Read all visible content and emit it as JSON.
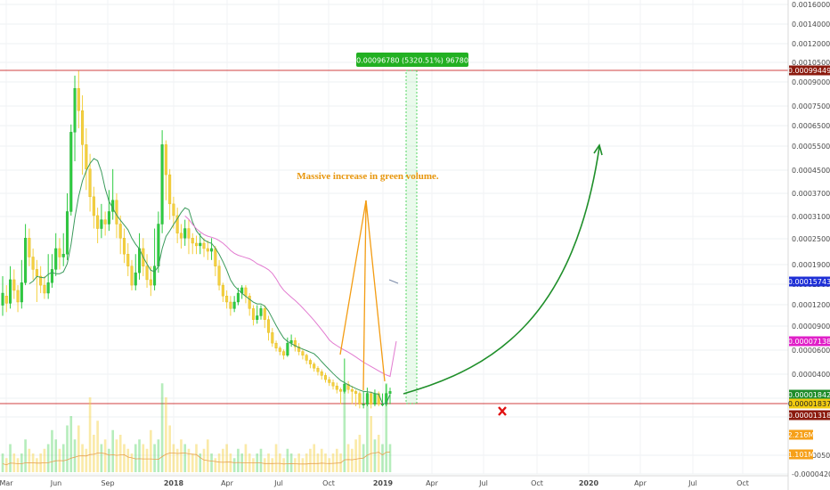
{
  "chart_data": {
    "type": "candlestick",
    "scale": "log",
    "y_ticks": [
      "0.00160000",
      "0.00140000",
      "0.00120000",
      "0.00105000",
      "0.00090000",
      "0.00075000",
      "0.00065000",
      "0.00055000",
      "0.00045000",
      "0.00037000",
      "0.00031000",
      "0.00025000",
      "0.00019000",
      "0.00015000",
      "0.00012000",
      "0.00009000",
      "0.00006000",
      "0.00004000",
      "0.00002000",
      "0.00000900",
      "0.00000500",
      "-0.00004200"
    ],
    "x_ticks": [
      "Mar",
      "Jun",
      "Sep",
      "2018",
      "Apr",
      "Jul",
      "Oct",
      "2019",
      "Apr",
      "Jul",
      "Oct",
      "2020",
      "Apr",
      "Jul",
      "Oct"
    ],
    "price_badges": [
      {
        "label": "0.00099449",
        "value": 0.00099449,
        "color": "#8b1a0e"
      },
      {
        "label": "0.00015743",
        "value": 0.00015743,
        "color": "#1e2fd6"
      },
      {
        "label": "0.00007138",
        "value": 7.138e-05,
        "color": "#e020c8"
      },
      {
        "label": "0.00001842",
        "value": 1.842e-05,
        "color": "#1f8c2a"
      },
      {
        "label": "0.00001837",
        "value": 1.837e-05,
        "color": "#f2cc10"
      },
      {
        "label": "0.00001318",
        "value": 1.318e-05,
        "color": "#8b1a0e"
      }
    ],
    "volume_badges": [
      {
        "label": "2.216M",
        "color": "#f6a019"
      },
      {
        "label": "1.101M",
        "color": "#f6a019"
      }
    ],
    "horizontal_lines": [
      0.00099449,
      1.837e-05
    ],
    "measure_label": "0.00096780 (5320.51%) 96780",
    "annotation": "Massive increase in green volume.",
    "colors": {
      "up": "#2ecc40",
      "down": "#f4d03f",
      "ma_fast": "#3a9a5b",
      "ma_slow": "#e27bd0",
      "projection": "#1f8f2a",
      "arrows": "#f39c12",
      "hline": "#d04040",
      "cross": "#e01010"
    },
    "candles": [
      [
        0.000115,
        0.000135,
        0.000165,
        0.0001
      ],
      [
        0.00013,
        0.000118,
        0.00015,
        0.000105
      ],
      [
        0.000118,
        0.00016,
        0.00018,
        0.00011
      ],
      [
        0.00016,
        0.00014,
        0.000175,
        0.000125
      ],
      [
        0.00014,
        0.00012,
        0.00015,
        0.000105
      ],
      [
        0.00012,
        0.000155,
        0.00019,
        0.00011
      ],
      [
        0.000155,
        0.00023,
        0.00026,
        0.00015
      ],
      [
        0.00023,
        0.000195,
        0.00025,
        0.00018
      ],
      [
        0.000195,
        0.000175,
        0.00021,
        0.00016
      ],
      [
        0.000175,
        0.000165,
        0.00019,
        0.00012
      ],
      [
        0.000165,
        0.00015,
        0.00018,
        0.000135
      ],
      [
        0.00015,
        0.000135,
        0.000165,
        0.000125
      ],
      [
        0.000135,
        0.000155,
        0.0002,
        0.000125
      ],
      [
        0.000155,
        0.000175,
        0.0002,
        0.000145
      ],
      [
        0.000175,
        0.00021,
        0.00024,
        0.000165
      ],
      [
        0.00021,
        0.000195,
        0.00023,
        0.000175
      ],
      [
        0.000195,
        0.0002,
        0.00024,
        0.00018
      ],
      [
        0.0002,
        0.00029,
        0.00034,
        0.00019
      ],
      [
        0.00029,
        0.00058,
        0.00062,
        0.00028
      ],
      [
        0.00058,
        0.00085,
        0.00095,
        0.00045
      ],
      [
        0.00085,
        0.0007,
        0.00099,
        0.0006
      ],
      [
        0.0007,
        0.00052,
        0.0008,
        0.0004
      ],
      [
        0.00052,
        0.00042,
        0.0006,
        0.00035
      ],
      [
        0.00042,
        0.00033,
        0.00048,
        0.00029
      ],
      [
        0.00033,
        0.00028,
        0.00036,
        0.00025
      ],
      [
        0.00028,
        0.00025,
        0.0003,
        0.00022
      ],
      [
        0.00025,
        0.00027,
        0.00031,
        0.00023
      ],
      [
        0.00027,
        0.00026,
        0.00029,
        0.000235
      ],
      [
        0.00026,
        0.00029,
        0.00035,
        0.000245
      ],
      [
        0.00029,
        0.00032,
        0.00042,
        0.00027
      ],
      [
        0.00032,
        0.00026,
        0.00034,
        0.00023
      ],
      [
        0.00026,
        0.00023,
        0.00028,
        0.0002
      ],
      [
        0.00023,
        0.0002,
        0.00025,
        0.000185
      ],
      [
        0.0002,
        0.00018,
        0.00022,
        0.000165
      ],
      [
        0.00018,
        0.00015,
        0.00019,
        0.00014
      ],
      [
        0.00015,
        0.00017,
        0.0002,
        0.00014
      ],
      [
        0.00017,
        0.00021,
        0.00024,
        0.00016
      ],
      [
        0.00021,
        0.00018,
        0.00023,
        0.000165
      ],
      [
        0.00018,
        0.00016,
        0.0002,
        0.000145
      ],
      [
        0.00016,
        0.00015,
        0.00018,
        0.00013
      ],
      [
        0.00015,
        0.00018,
        0.00025,
        0.00014
      ],
      [
        0.00018,
        0.00026,
        0.00029,
        0.00017
      ],
      [
        0.00026,
        0.00052,
        0.00059,
        0.00024
      ],
      [
        0.00052,
        0.0004,
        0.00054,
        0.00032
      ],
      [
        0.0004,
        0.00031,
        0.00042,
        0.00027
      ],
      [
        0.00031,
        0.00028,
        0.00033,
        0.00025
      ],
      [
        0.00028,
        0.00024,
        0.0003,
        0.00022
      ],
      [
        0.00024,
        0.00023,
        0.00026,
        0.00021
      ],
      [
        0.00023,
        0.00025,
        0.00027,
        0.000215
      ],
      [
        0.00025,
        0.00023,
        0.00027,
        0.0002
      ],
      [
        0.00023,
        0.00022,
        0.00024,
        0.0002
      ],
      [
        0.00022,
        0.000215,
        0.000235,
        0.0002
      ],
      [
        0.000215,
        0.00022,
        0.00024,
        0.0002
      ],
      [
        0.00022,
        0.00021,
        0.00023,
        0.000195
      ],
      [
        0.00021,
        0.000205,
        0.000225,
        0.00019
      ],
      [
        0.000205,
        0.00021,
        0.00023,
        0.00019
      ],
      [
        0.00021,
        0.00018,
        0.000215,
        0.000165
      ],
      [
        0.00018,
        0.00015,
        0.00019,
        0.00014
      ],
      [
        0.00015,
        0.00013,
        0.000155,
        0.00012
      ],
      [
        0.00013,
        0.00012,
        0.00014,
        0.00011
      ],
      [
        0.00012,
        0.00011,
        0.00013,
        0.0001
      ],
      [
        0.00011,
        0.00012,
        0.00013,
        0.000105
      ],
      [
        0.00012,
        0.000135,
        0.000145,
        0.000115
      ],
      [
        0.000135,
        0.000145,
        0.00015,
        0.000125
      ],
      [
        0.000145,
        0.00013,
        0.00015,
        0.000118
      ],
      [
        0.00013,
        0.00011,
        0.000135,
        0.0001
      ],
      [
        0.00011,
        9.5e-05,
        0.000115,
        8.8e-05
      ],
      [
        9.5e-05,
        0.0001,
        0.000115,
        9e-05
      ],
      [
        0.0001,
        0.00011,
        0.000115,
        9.5e-05
      ],
      [
        0.00011,
        9.5e-05,
        0.000115,
        8.5e-05
      ],
      [
        9.5e-05,
        8e-05,
        0.0001,
        7.2e-05
      ],
      [
        8e-05,
        6.8e-05,
        8.5e-05,
        6.2e-05
      ],
      [
        6.8e-05,
        6e-05,
        7.2e-05,
        5.5e-05
      ],
      [
        6e-05,
        5.5e-05,
        6.3e-05,
        5e-05
      ],
      [
        5.5e-05,
        5e-05,
        5.8e-05,
        4.5e-05
      ],
      [
        5e-05,
        6.8e-05,
        7.5e-05,
        4.8e-05
      ],
      [
        6.8e-05,
        7.2e-05,
        7.8e-05,
        6.2e-05
      ],
      [
        7.2e-05,
        6.2e-05,
        7.5e-05,
        5.5e-05
      ],
      [
        6.2e-05,
        5.5e-05,
        6.8e-05,
        5e-05
      ],
      [
        5.5e-05,
        5e-05,
        5.8e-05,
        4.5e-05
      ],
      [
        5e-05,
        4.4e-05,
        5.2e-05,
        4e-05
      ],
      [
        4.4e-05,
        4e-05,
        4.6e-05,
        3.6e-05
      ],
      [
        4e-05,
        3.6e-05,
        4.2e-05,
        3.3e-05
      ],
      [
        3.6e-05,
        3.3e-05,
        3.8e-05,
        3e-05
      ],
      [
        3.3e-05,
        3e-05,
        3.5e-05,
        2.7e-05
      ],
      [
        3e-05,
        2.7e-05,
        3.2e-05,
        2.5e-05
      ],
      [
        2.7e-05,
        2.5e-05,
        2.9e-05,
        2.3e-05
      ],
      [
        2.5e-05,
        2.3e-05,
        2.7e-05,
        2.1e-05
      ],
      [
        2.3e-05,
        2.1e-05,
        2.5e-05,
        1.9e-05
      ],
      [
        2.1e-05,
        2e-05,
        2.2e-05,
        1.8e-05
      ],
      [
        2e-05,
        2.4e-05,
        4.6e-05,
        1.9e-05
      ],
      [
        2.4e-05,
        2.1e-05,
        2.6e-05,
        1.9e-05
      ],
      [
        2.1e-05,
        2e-05,
        2.3e-05,
        1.8e-05
      ],
      [
        2e-05,
        1.9e-05,
        2.1e-05,
        1.7e-05
      ],
      [
        1.9e-05,
        1.8e-05,
        2e-05,
        1.6e-05
      ],
      [
        1.8e-05,
        1.8e-05,
        2e-05,
        1.6e-05
      ],
      [
        1.8e-05,
        1.9e-05,
        2.2e-05,
        1.7e-05
      ],
      [
        1.9e-05,
        1.8e-05,
        2e-05,
        1.6e-05
      ],
      [
        1.8e-05,
        1.9e-05,
        2.1e-05,
        1.7e-05
      ],
      [
        1.9e-05,
        1.8e-05,
        2e-05,
        1.7e-05
      ],
      [
        1.8e-05,
        1.8e-05,
        1.9e-05,
        1.7e-05
      ],
      [
        1.8e-05,
        1.9e-05,
        2.4e-05,
        1.7e-05
      ],
      [
        1.9e-05,
        2e-05,
        2.2e-05,
        1.8e-05
      ]
    ],
    "volumes": [
      0.2,
      0.15,
      0.3,
      0.2,
      0.15,
      0.2,
      0.35,
      0.25,
      0.2,
      0.15,
      0.2,
      0.25,
      0.3,
      0.45,
      0.35,
      0.25,
      0.3,
      0.5,
      0.6,
      0.35,
      0.5,
      0.3,
      0.25,
      0.8,
      0.4,
      0.55,
      0.3,
      0.35,
      0.25,
      0.45,
      0.35,
      0.4,
      0.3,
      0.25,
      0.2,
      0.3,
      0.35,
      0.3,
      0.25,
      0.45,
      0.3,
      0.35,
      0.95,
      0.8,
      0.5,
      0.3,
      0.25,
      0.35,
      0.3,
      0.25,
      0.2,
      0.3,
      0.2,
      0.25,
      0.35,
      0.2,
      0.15,
      0.2,
      0.25,
      0.3,
      0.2,
      0.15,
      0.25,
      0.2,
      0.3,
      0.2,
      0.15,
      0.2,
      0.25,
      0.15,
      0.2,
      0.15,
      0.3,
      0.2,
      0.15,
      0.25,
      0.2,
      0.15,
      0.2,
      0.15,
      0.2,
      0.25,
      0.3,
      0.2,
      0.25,
      0.2,
      0.15,
      0.2,
      0.25,
      0.2,
      0.95,
      0.3,
      0.25,
      0.35,
      0.4,
      0.3,
      0.85,
      0.6,
      0.35,
      0.4,
      0.3,
      0.95,
      0.3
    ]
  }
}
